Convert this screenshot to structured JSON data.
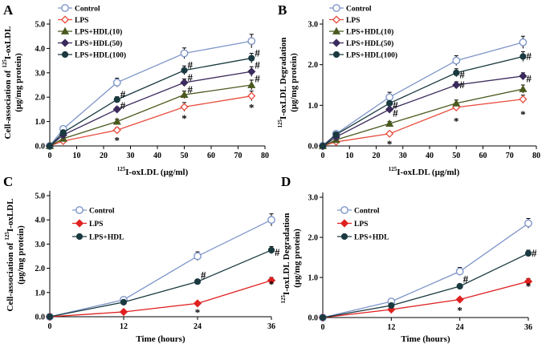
{
  "chart_data": [
    {
      "panel": "A",
      "type": "line",
      "xlabel": "125I-oxLDL (μg/ml)",
      "ylabel": "Cell-association of 125I-oxLDL (μg/mg protein)",
      "x": [
        0,
        5,
        25,
        50,
        75
      ],
      "xlim": [
        0,
        80
      ],
      "ylim": [
        0,
        5.0
      ],
      "xticks": [
        0,
        10,
        20,
        30,
        40,
        50,
        60,
        70,
        80
      ],
      "yticks": [
        "0.0",
        "1.0",
        "2.0",
        "3.0",
        "4.0",
        "5.0"
      ],
      "legend": "top-left",
      "series": [
        {
          "name": "Control",
          "values": [
            0,
            0.7,
            2.6,
            3.8,
            4.3
          ],
          "errors": [
            0,
            0.08,
            0.18,
            0.22,
            0.28
          ],
          "marker": "circle-open",
          "color": "#7f96c9"
        },
        {
          "name": "LPS",
          "values": [
            0,
            0.2,
            0.65,
            1.6,
            2.05
          ],
          "errors": [
            0,
            0.05,
            0.1,
            0.18,
            0.2
          ],
          "marker": "diamond-open",
          "color": "#e84b3c"
        },
        {
          "name": "LPS+HDL(10)",
          "values": [
            0,
            0.3,
            1.0,
            2.1,
            2.5
          ],
          "errors": [
            0,
            0.05,
            0.1,
            0.15,
            0.2
          ],
          "marker": "triangle",
          "color": "#4a5a1e"
        },
        {
          "name": "LPS+HDL(50)",
          "values": [
            0,
            0.45,
            1.5,
            2.6,
            3.05
          ],
          "errors": [
            0,
            0.05,
            0.1,
            0.15,
            0.2
          ],
          "marker": "diamond",
          "color": "#3b2a5c"
        },
        {
          "name": "LPS+HDL(100)",
          "values": [
            0,
            0.55,
            1.9,
            3.1,
            3.6
          ],
          "errors": [
            0,
            0.05,
            0.12,
            0.18,
            0.2
          ],
          "marker": "circle",
          "color": "#1a3a40"
        }
      ],
      "annotations": [
        {
          "x": 25,
          "y": 0.35,
          "text": "*"
        },
        {
          "x": 50,
          "y": 1.25,
          "text": "*"
        },
        {
          "x": 75,
          "y": 1.7,
          "text": "*"
        },
        {
          "x": 25,
          "y": 2.1,
          "text": "#"
        },
        {
          "x": 25,
          "y": 1.65,
          "text": "#"
        },
        {
          "x": 50,
          "y": 3.3,
          "text": "#"
        },
        {
          "x": 50,
          "y": 2.8,
          "text": "#"
        },
        {
          "x": 50,
          "y": 2.3,
          "text": "#"
        },
        {
          "x": 75,
          "y": 3.8,
          "text": "#"
        },
        {
          "x": 75,
          "y": 3.3,
          "text": "#"
        },
        {
          "x": 75,
          "y": 2.75,
          "text": "#"
        }
      ]
    },
    {
      "panel": "B",
      "type": "line",
      "xlabel": "125I-oxLDL (μg/ml)",
      "ylabel": "125I-oxLDL Degradation (μg/mg protein)",
      "x": [
        0,
        5,
        25,
        50,
        75
      ],
      "xlim": [
        0,
        80
      ],
      "ylim": [
        0,
        3.0
      ],
      "xticks": [
        0,
        10,
        20,
        30,
        40,
        50,
        60,
        70,
        80
      ],
      "yticks": [
        "0.0",
        "1.0",
        "2.0",
        "3.0"
      ],
      "legend": "top-left",
      "series": [
        {
          "name": "Control",
          "values": [
            0,
            0.3,
            1.2,
            2.1,
            2.55
          ],
          "errors": [
            0,
            0.05,
            0.12,
            0.12,
            0.15
          ],
          "marker": "circle-open",
          "color": "#7f96c9"
        },
        {
          "name": "LPS",
          "values": [
            0,
            0.1,
            0.3,
            0.95,
            1.15
          ],
          "errors": [
            0,
            0.03,
            0.05,
            0.08,
            0.1
          ],
          "marker": "diamond-open",
          "color": "#e84b3c"
        },
        {
          "name": "LPS+HDL(10)",
          "values": [
            0,
            0.15,
            0.55,
            1.05,
            1.4
          ],
          "errors": [
            0,
            0.03,
            0.05,
            0.08,
            0.1
          ],
          "marker": "triangle",
          "color": "#4a5a1e"
        },
        {
          "name": "LPS+HDL(50)",
          "values": [
            0,
            0.22,
            0.9,
            1.5,
            1.72
          ],
          "errors": [
            0,
            0.03,
            0.05,
            0.08,
            0.08
          ],
          "marker": "diamond",
          "color": "#3b2a5c"
        },
        {
          "name": "LPS+HDL(100)",
          "values": [
            0,
            0.28,
            1.05,
            1.8,
            2.2
          ],
          "errors": [
            0,
            0.03,
            0.06,
            0.1,
            0.12
          ],
          "marker": "circle",
          "color": "#1a3a40"
        }
      ],
      "annotations": [
        {
          "x": 25,
          "y": 0.12,
          "text": "*"
        },
        {
          "x": 50,
          "y": 0.68,
          "text": "*"
        },
        {
          "x": 75,
          "y": 0.85,
          "text": "*"
        },
        {
          "x": 25,
          "y": 1.0,
          "text": "#"
        },
        {
          "x": 25,
          "y": 0.8,
          "text": "#"
        },
        {
          "x": 50,
          "y": 1.75,
          "text": "#"
        },
        {
          "x": 50,
          "y": 1.5,
          "text": "#"
        },
        {
          "x": 75,
          "y": 2.2,
          "text": "#"
        },
        {
          "x": 75,
          "y": 1.65,
          "text": "#"
        }
      ]
    },
    {
      "panel": "C",
      "type": "line",
      "xlabel": "Time (hours)",
      "ylabel": "Cell-association of 125I-oxLDL (μg/mg protein)",
      "x": [
        0,
        12,
        24,
        36
      ],
      "xlim": [
        0,
        36
      ],
      "ylim": [
        0,
        5.0
      ],
      "xticks": [
        0,
        12,
        24,
        36
      ],
      "yticks": [
        "0.0",
        "1.0",
        "2.0",
        "3.0",
        "4.0",
        "5.0"
      ],
      "legend": "top-left",
      "series": [
        {
          "name": "Control",
          "values": [
            0,
            0.7,
            2.5,
            4.0
          ],
          "errors": [
            0,
            0.08,
            0.18,
            0.25
          ],
          "marker": "circle-open",
          "color": "#7f96c9"
        },
        {
          "name": "LPS",
          "values": [
            0,
            0.2,
            0.55,
            1.5
          ],
          "errors": [
            0,
            0.03,
            0.05,
            0.12
          ],
          "marker": "diamond",
          "color": "#e02020"
        },
        {
          "name": "LPS+HDL",
          "values": [
            0,
            0.6,
            1.45,
            2.75
          ],
          "errors": [
            0,
            0.05,
            0.08,
            0.15
          ],
          "marker": "circle",
          "color": "#1a3a40"
        }
      ],
      "annotations": [
        {
          "x": 24,
          "y": 0.3,
          "text": "*"
        },
        {
          "x": 36,
          "y": 1.45,
          "text": "*"
        },
        {
          "x": 24,
          "y": 1.7,
          "text": "#"
        },
        {
          "x": 36,
          "y": 2.65,
          "text": "#"
        }
      ]
    },
    {
      "panel": "D",
      "type": "line",
      "xlabel": "Time (hours)",
      "ylabel": "125I-oxLDL Degradation (μg/mg protein)",
      "x": [
        0,
        12,
        24,
        36
      ],
      "xlim": [
        0,
        36
      ],
      "ylim": [
        0,
        3.0
      ],
      "xticks": [
        0,
        12,
        24,
        36
      ],
      "yticks": [
        "0.0",
        "1.0",
        "2.0",
        "3.0"
      ],
      "legend": "top-left",
      "series": [
        {
          "name": "Control",
          "values": [
            0,
            0.4,
            1.15,
            2.35
          ],
          "errors": [
            0,
            0.04,
            0.1,
            0.12
          ],
          "marker": "circle-open",
          "color": "#7f96c9"
        },
        {
          "name": "LPS",
          "values": [
            0,
            0.2,
            0.45,
            0.9
          ],
          "errors": [
            0,
            0.02,
            0.04,
            0.07
          ],
          "marker": "diamond",
          "color": "#e02020"
        },
        {
          "name": "LPS+HDL",
          "values": [
            0,
            0.3,
            0.78,
            1.6
          ],
          "errors": [
            0,
            0.03,
            0.05,
            0.08
          ],
          "marker": "circle",
          "color": "#1a3a40"
        }
      ],
      "annotations": [
        {
          "x": 24,
          "y": 0.25,
          "text": "*"
        },
        {
          "x": 36,
          "y": 0.85,
          "text": "*"
        },
        {
          "x": 24,
          "y": 0.95,
          "text": "#"
        },
        {
          "x": 36,
          "y": 1.6,
          "text": "#"
        }
      ]
    }
  ],
  "labels": {
    "panels": [
      "A",
      "B",
      "C",
      "D"
    ],
    "oxldl_axis": "I-oxLDL (μg/ml)",
    "time_axis": "Time (hours)",
    "iso_sup": "125",
    "ylabel_cell_prefix": "Cell-association of",
    "ylabel_cell_suffix": "I-oxLDL",
    "ylabel_degr": "I-oxLDL Degradation",
    "ylabel_unit": "(μg/mg protein)"
  }
}
